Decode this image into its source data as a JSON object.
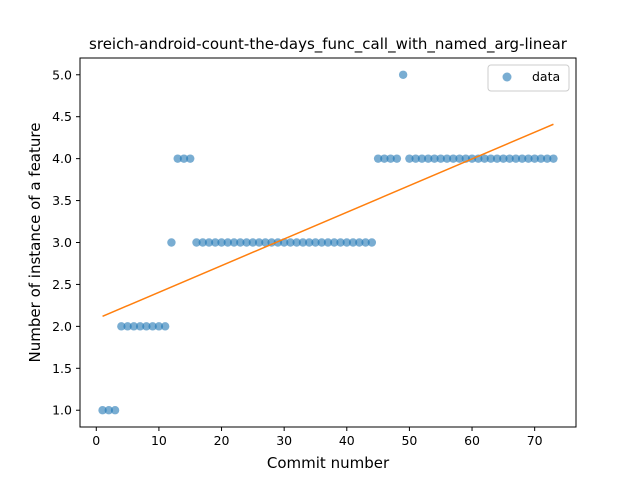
{
  "chart_data": {
    "type": "scatter",
    "title": "sreich-android-count-the-days_func_call_with_named_arg-linear",
    "xlabel": "Commit number",
    "ylabel": "Number of instance of a feature",
    "xlim": [
      -2.6,
      76.6
    ],
    "ylim": [
      0.8,
      5.2
    ],
    "xticks": [
      0,
      10,
      20,
      30,
      40,
      50,
      60,
      70
    ],
    "yticks": [
      1.0,
      1.5,
      2.0,
      2.5,
      3.0,
      3.5,
      4.0,
      4.5,
      5.0
    ],
    "ytick_labels": [
      "1.0",
      "1.5",
      "2.0",
      "2.5",
      "3.0",
      "3.5",
      "4.0",
      "4.5",
      "5.0"
    ],
    "grid": false,
    "legend_position": "top-right",
    "series": [
      {
        "name": "data",
        "kind": "scatter",
        "color": "#1f77b4",
        "x": [
          1,
          2,
          3,
          4,
          5,
          6,
          7,
          8,
          9,
          10,
          11,
          12,
          13,
          14,
          15,
          16,
          17,
          18,
          19,
          20,
          21,
          22,
          23,
          24,
          25,
          26,
          27,
          28,
          29,
          30,
          31,
          32,
          33,
          34,
          35,
          36,
          37,
          38,
          39,
          40,
          41,
          42,
          43,
          44,
          45,
          46,
          47,
          48,
          49,
          50,
          51,
          52,
          53,
          54,
          55,
          56,
          57,
          58,
          59,
          60,
          61,
          62,
          63,
          64,
          65,
          66,
          67,
          68,
          69,
          70,
          71,
          72,
          73
        ],
        "y": [
          1,
          1,
          1,
          2,
          2,
          2,
          2,
          2,
          2,
          2,
          2,
          3,
          4,
          4,
          4,
          3,
          3,
          3,
          3,
          3,
          3,
          3,
          3,
          3,
          3,
          3,
          3,
          3,
          3,
          3,
          3,
          3,
          3,
          3,
          3,
          3,
          3,
          3,
          3,
          3,
          3,
          3,
          3,
          3,
          4,
          4,
          4,
          4,
          5,
          4,
          4,
          4,
          4,
          4,
          4,
          4,
          4,
          4,
          4,
          4,
          4,
          4,
          4,
          4,
          4,
          4,
          4,
          4,
          4,
          4,
          4,
          4,
          4
        ]
      },
      {
        "name": "",
        "kind": "line",
        "color": "#ff7f0e",
        "x": [
          1,
          73
        ],
        "y": [
          2.12,
          4.41
        ]
      }
    ]
  }
}
